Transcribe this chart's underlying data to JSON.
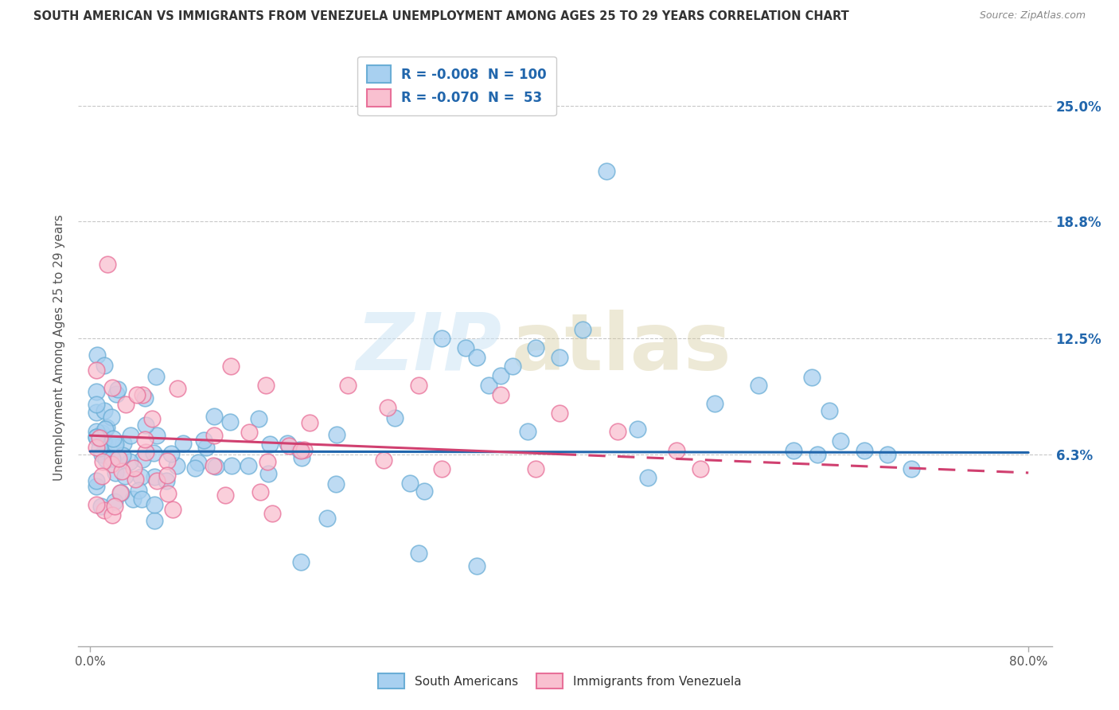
{
  "title": "SOUTH AMERICAN VS IMMIGRANTS FROM VENEZUELA UNEMPLOYMENT AMONG AGES 25 TO 29 YEARS CORRELATION CHART",
  "source": "Source: ZipAtlas.com",
  "ylabel": "Unemployment Among Ages 25 to 29 years",
  "xlabel_ticks": [
    "0.0%",
    "80.0%"
  ],
  "xlabel_vals": [
    0.0,
    0.8
  ],
  "ytick_labels": [
    "6.3%",
    "12.5%",
    "18.8%",
    "25.0%"
  ],
  "ytick_vals": [
    0.063,
    0.125,
    0.188,
    0.25
  ],
  "xlim": [
    -0.01,
    0.82
  ],
  "ylim": [
    -0.04,
    0.28
  ],
  "r_blue": -0.008,
  "n_blue": 100,
  "r_pink": -0.07,
  "n_pink": 53,
  "blue_color": "#a8d0f0",
  "blue_edge_color": "#6baed6",
  "pink_color": "#f9c0d0",
  "pink_edge_color": "#e87099",
  "blue_line_color": "#2166ac",
  "pink_line_color": "#d04070",
  "background_color": "#ffffff",
  "grid_color": "#c8c8c8",
  "legend_label_blue": "South Americans",
  "legend_label_pink": "Immigrants from Venezuela",
  "title_color": "#333333",
  "source_color": "#888888",
  "ylabel_color": "#555555",
  "ytick_color": "#2166ac"
}
